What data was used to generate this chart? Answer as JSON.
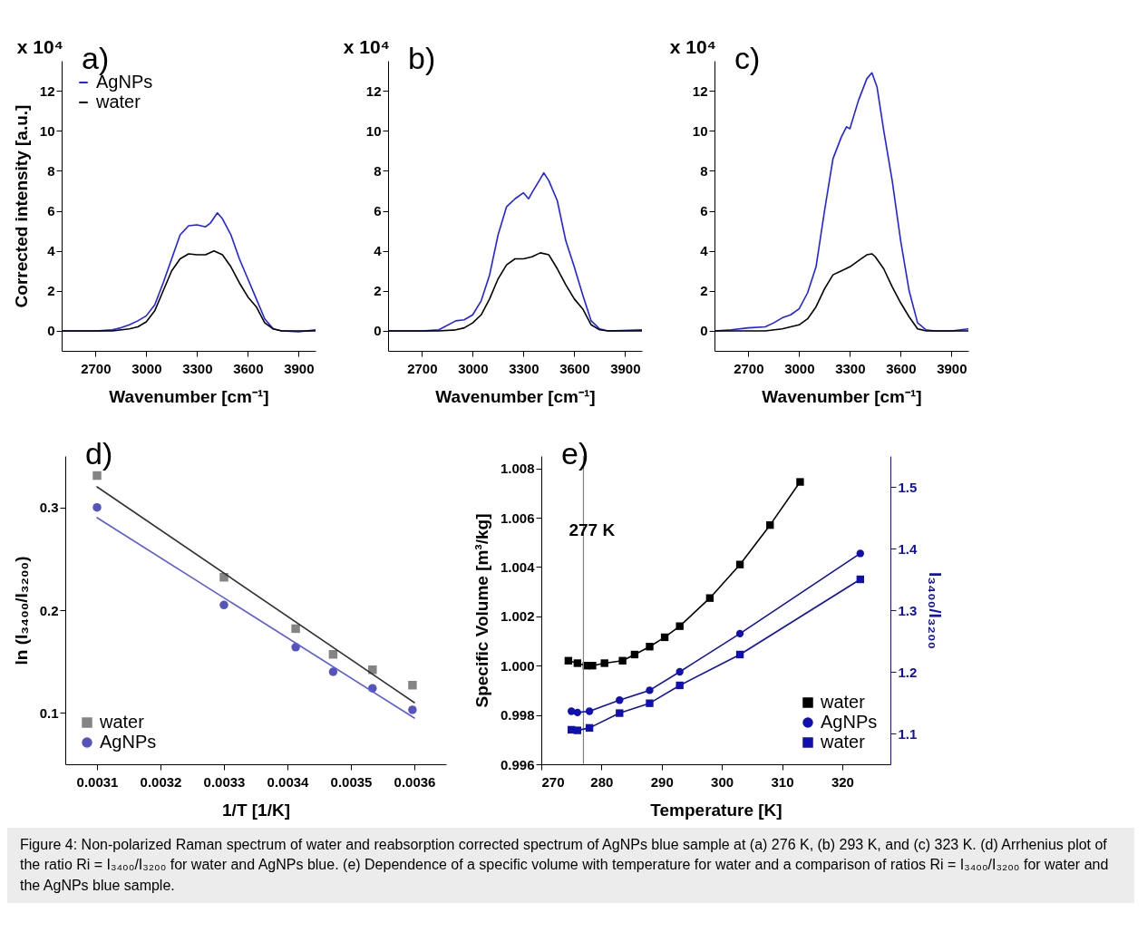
{
  "chart_data": [
    {
      "type": "line",
      "xlabel": "Wavenumber [cm⁻¹]",
      "ylabel": "Corrected intensity [a.u.]",
      "annotations": [
        "a)",
        "x 10⁴"
      ],
      "xlim": [
        2500,
        4000
      ],
      "xticks": [
        2700,
        3000,
        3300,
        3600,
        3900
      ],
      "ylim": [
        -1,
        13.5
      ],
      "yticks": [
        0,
        2,
        4,
        6,
        8,
        10,
        12
      ],
      "legend": "top left",
      "marker": "none",
      "series": [
        {
          "name": "AgNPs",
          "color": "#1f1fff",
          "x": [
            2500,
            2600,
            2700,
            2800,
            2850,
            2900,
            2950,
            3000,
            3050,
            3100,
            3150,
            3200,
            3250,
            3300,
            3350,
            3380,
            3420,
            3450,
            3500,
            3550,
            3600,
            3650,
            3700,
            3750,
            3800,
            3900,
            4000
          ],
          "values": [
            0,
            0,
            0,
            0.05,
            0.15,
            0.3,
            0.5,
            0.75,
            1.3,
            2.4,
            3.6,
            4.8,
            5.25,
            5.3,
            5.2,
            5.4,
            5.9,
            5.6,
            4.8,
            3.6,
            2.6,
            1.6,
            0.6,
            0.1,
            0,
            -0.05,
            0.05
          ]
        },
        {
          "name": "water",
          "color": "#000000",
          "x": [
            2500,
            2700,
            2800,
            2900,
            2950,
            3000,
            3050,
            3100,
            3150,
            3200,
            3250,
            3300,
            3350,
            3400,
            3450,
            3500,
            3550,
            3600,
            3650,
            3700,
            3750,
            3800,
            4000
          ],
          "values": [
            0,
            0,
            0,
            0.1,
            0.2,
            0.45,
            1.0,
            2.0,
            3.0,
            3.6,
            3.85,
            3.8,
            3.8,
            4.0,
            3.8,
            3.2,
            2.4,
            1.7,
            1.2,
            0.4,
            0.1,
            0,
            0
          ]
        }
      ]
    },
    {
      "type": "line",
      "xlabel": "Wavenumber [cm⁻¹]",
      "annotations": [
        "b)",
        "x 10⁴"
      ],
      "xlim": [
        2500,
        4000
      ],
      "xticks": [
        2700,
        3000,
        3300,
        3600,
        3900
      ],
      "ylim": [
        -1,
        13.5
      ],
      "yticks": [
        0,
        2,
        4,
        6,
        8,
        10,
        12
      ],
      "marker": "none",
      "series": [
        {
          "color": "#1f1fff",
          "x": [
            2500,
            2700,
            2800,
            2900,
            2950,
            3000,
            3050,
            3100,
            3150,
            3200,
            3250,
            3300,
            3330,
            3350,
            3400,
            3420,
            3450,
            3500,
            3550,
            3600,
            3650,
            3700,
            3750,
            3800,
            4000
          ],
          "values": [
            0,
            0,
            0.05,
            0.5,
            0.55,
            0.8,
            1.5,
            2.8,
            4.8,
            6.2,
            6.6,
            6.9,
            6.6,
            6.9,
            7.6,
            7.9,
            7.5,
            6.5,
            4.5,
            3.2,
            1.8,
            0.5,
            0.1,
            0,
            0.05
          ]
        },
        {
          "color": "#000000",
          "x": [
            2500,
            2800,
            2900,
            2950,
            3000,
            3050,
            3100,
            3150,
            3200,
            3250,
            3300,
            3350,
            3400,
            3450,
            3500,
            3550,
            3600,
            3650,
            3700,
            3750,
            3800,
            4000
          ],
          "values": [
            0,
            0,
            0.05,
            0.15,
            0.4,
            0.8,
            1.6,
            2.6,
            3.3,
            3.6,
            3.6,
            3.7,
            3.9,
            3.8,
            3.1,
            2.3,
            1.6,
            1.1,
            0.3,
            0.05,
            0,
            0
          ]
        }
      ]
    },
    {
      "type": "line",
      "xlabel": "Wavenumber [cm⁻¹]",
      "annotations": [
        "c)",
        "x 10⁴"
      ],
      "xlim": [
        2500,
        4000
      ],
      "xticks": [
        2700,
        3000,
        3300,
        3600,
        3900
      ],
      "ylim": [
        -1,
        13.5
      ],
      "yticks": [
        0,
        2,
        4,
        6,
        8,
        10,
        12
      ],
      "marker": "none",
      "series": [
        {
          "color": "#1f1fff",
          "x": [
            2500,
            2600,
            2700,
            2800,
            2850,
            2900,
            2950,
            3000,
            3050,
            3100,
            3150,
            3200,
            3250,
            3280,
            3300,
            3350,
            3400,
            3430,
            3460,
            3500,
            3550,
            3600,
            3650,
            3700,
            3750,
            3800,
            3900,
            4000
          ],
          "values": [
            0,
            0.05,
            0.15,
            0.2,
            0.4,
            0.65,
            0.8,
            1.1,
            1.9,
            3.2,
            6.0,
            8.6,
            9.7,
            10.2,
            10.1,
            11.5,
            12.6,
            12.9,
            12.2,
            10.0,
            7.5,
            4.5,
            2.0,
            0.4,
            0.05,
            0,
            0,
            0.1
          ]
        },
        {
          "color": "#000000",
          "x": [
            2500,
            2800,
            2900,
            2950,
            3000,
            3050,
            3100,
            3150,
            3200,
            3250,
            3300,
            3350,
            3400,
            3430,
            3450,
            3500,
            3550,
            3600,
            3650,
            3700,
            3750,
            4000
          ],
          "values": [
            0,
            0,
            0.1,
            0.2,
            0.3,
            0.6,
            1.2,
            2.1,
            2.8,
            3.0,
            3.2,
            3.5,
            3.8,
            3.85,
            3.7,
            3.1,
            2.2,
            1.4,
            0.7,
            0.1,
            0,
            0
          ]
        }
      ]
    },
    {
      "type": "scatter",
      "xlabel": "1/T [1/K]",
      "ylabel": "ln (I₃₄₀₀/I₃₂₀₀)",
      "annotations": [
        "d)"
      ],
      "xlim": [
        0.00305,
        0.00365
      ],
      "xticks": [
        0.0031,
        0.0032,
        0.0033,
        0.0034,
        0.0035,
        0.0036
      ],
      "ylim": [
        0.05,
        0.35
      ],
      "yticks": [
        0.1,
        0.2,
        0.3
      ],
      "legend": "bottom left",
      "series": [
        {
          "name": "water",
          "color": "#505050",
          "marker": "square",
          "x": [
            0.0031,
            0.0033,
            0.003413,
            0.003472,
            0.003534,
            0.003597
          ],
          "values": [
            0.331,
            0.232,
            0.182,
            0.157,
            0.142,
            0.127
          ]
        },
        {
          "name": "AgNPs",
          "color": "#0c0ca0",
          "marker": "circle",
          "x": [
            0.0031,
            0.0033,
            0.003413,
            0.003472,
            0.003534,
            0.003597
          ],
          "values": [
            0.3,
            0.205,
            0.164,
            0.14,
            0.124,
            0.103
          ]
        },
        {
          "type": "line",
          "color": "#333333",
          "marker": "none",
          "x": [
            0.0031,
            0.0036
          ],
          "values": [
            0.32,
            0.11
          ]
        },
        {
          "type": "line",
          "color": "#5a5ae6",
          "marker": "none",
          "x": [
            0.0031,
            0.0036
          ],
          "values": [
            0.29,
            0.095
          ]
        }
      ]
    },
    {
      "type": "line",
      "xlabel": "Temperature [K]",
      "ylabel": "Specific Volume [m³/kg]",
      "y2label": "I₃₄₀₀/I₃₂₀₀",
      "annotations": [
        "e)",
        "Figure 4: Non-polarized Raman spectrum of water and reabsorption corrected spectrum of AgNPs blue sample at (a) 276 K, (b) 293 K, and (c) 323 K. (d) Arrhenius plot of the ratio Ri = I₃₄₀₀/I₃₂₀₀ for water and AgNPs blue. (e) Dependence of a specific volume with temperature for water and a comparison of ratios Ri = I₃₄₀₀/I₃₂₀₀ for water and the AgNPs blue sample."
      ],
      "xlim": [
        270,
        328
      ],
      "xticks": [
        270,
        280,
        290,
        300,
        310,
        320
      ],
      "ylim": [
        0.996,
        1.0085
      ],
      "yticks": [
        0.996,
        0.998,
        {
          "value": 1,
          "label": "1.000"
        },
        1.002,
        1.004,
        1.006,
        1.008
      ],
      "y2lim": [
        1.05,
        1.55
      ],
      "y2ticks": [
        1.1,
        1.2,
        1.3,
        1.4,
        1.5
      ],
      "legend": "bottom right",
      "ref_lines": [
        {
          "axis": "x",
          "value": 277,
          "label": "277 K",
          "color": "#808080"
        }
      ],
      "series": [
        {
          "name": "water",
          "color": "#000000",
          "marker": "square",
          "x": [
            274.5,
            276,
            277.5,
            278.5,
            280.5,
            283.5,
            285.5,
            288,
            290.5,
            293,
            298,
            303,
            308,
            313
          ],
          "values": [
            1.0002,
            1.0001,
            1.0,
            1.0,
            1.0001,
            1.0002,
            1.00045,
            1.00077,
            1.00115,
            1.0016,
            1.00274,
            1.0041,
            1.0057,
            1.00745
          ]
        },
        {
          "name": "AgNPs",
          "color": "#1010b0",
          "marker": "circle",
          "axis": "y2",
          "x": [
            275,
            276,
            278,
            283,
            288,
            293,
            303,
            323
          ],
          "values": [
            1.136,
            1.134,
            1.136,
            1.154,
            1.17,
            1.2,
            1.262,
            1.392
          ]
        },
        {
          "name": "water",
          "color": "#1010b0",
          "marker": "square",
          "axis": "y2",
          "x": [
            275,
            276,
            278,
            283,
            288,
            293,
            303,
            323
          ],
          "values": [
            1.106,
            1.105,
            1.109,
            1.133,
            1.149,
            1.178,
            1.228,
            1.35
          ]
        }
      ]
    }
  ]
}
